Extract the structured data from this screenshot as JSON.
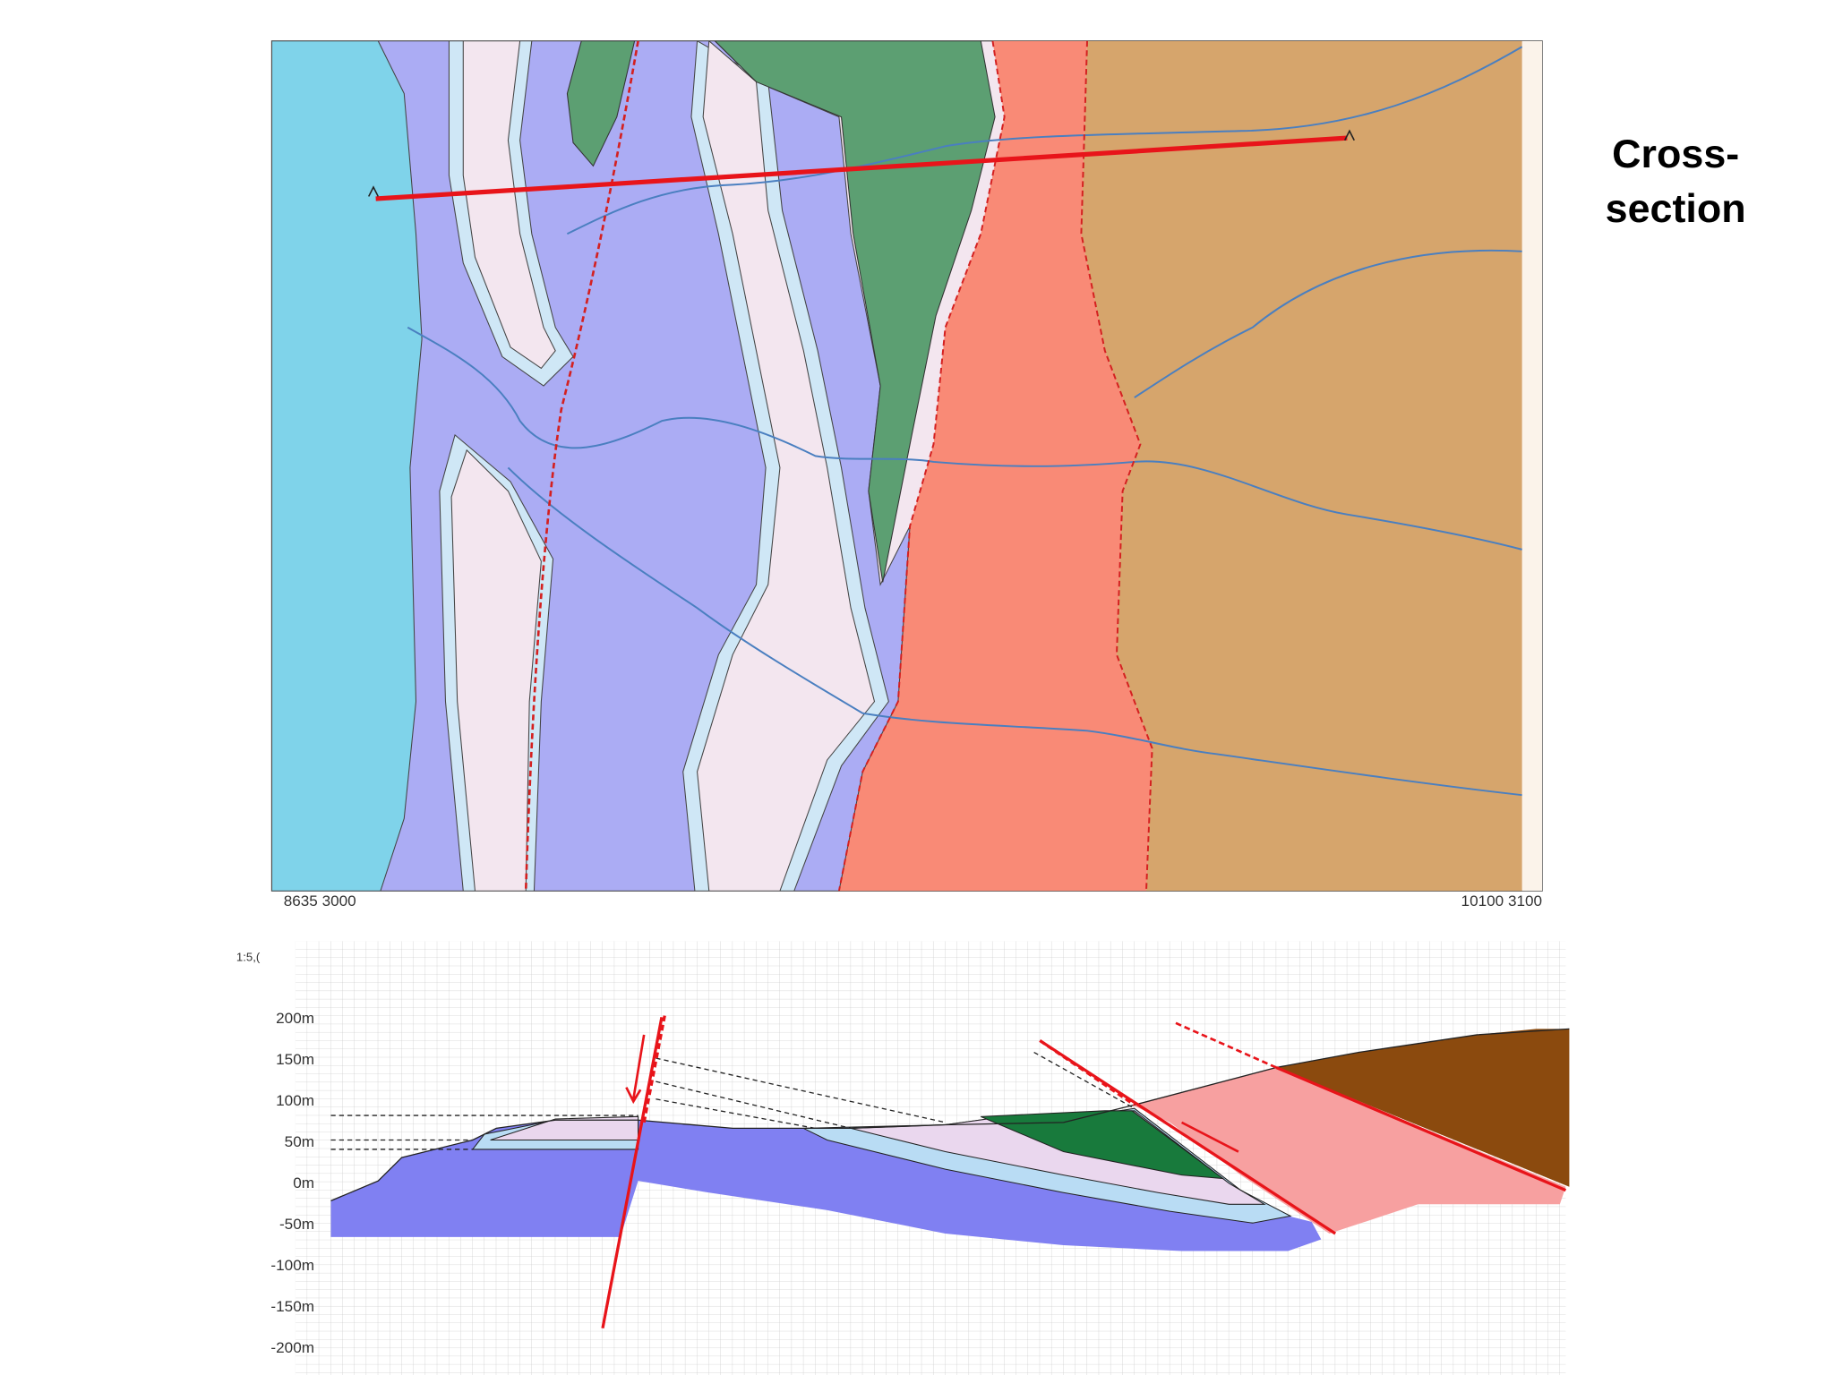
{
  "map": {
    "label_lines": [
      "Cross-",
      "section"
    ],
    "corner_left": "8635 3000",
    "corner_right": "10100 3100"
  },
  "section": {
    "scale": "1:5,(",
    "depth_labels": [
      "200m",
      "150m",
      "100m",
      "50m",
      "0m",
      "-50m",
      "-100m",
      "-150m",
      "-200m"
    ]
  }
}
